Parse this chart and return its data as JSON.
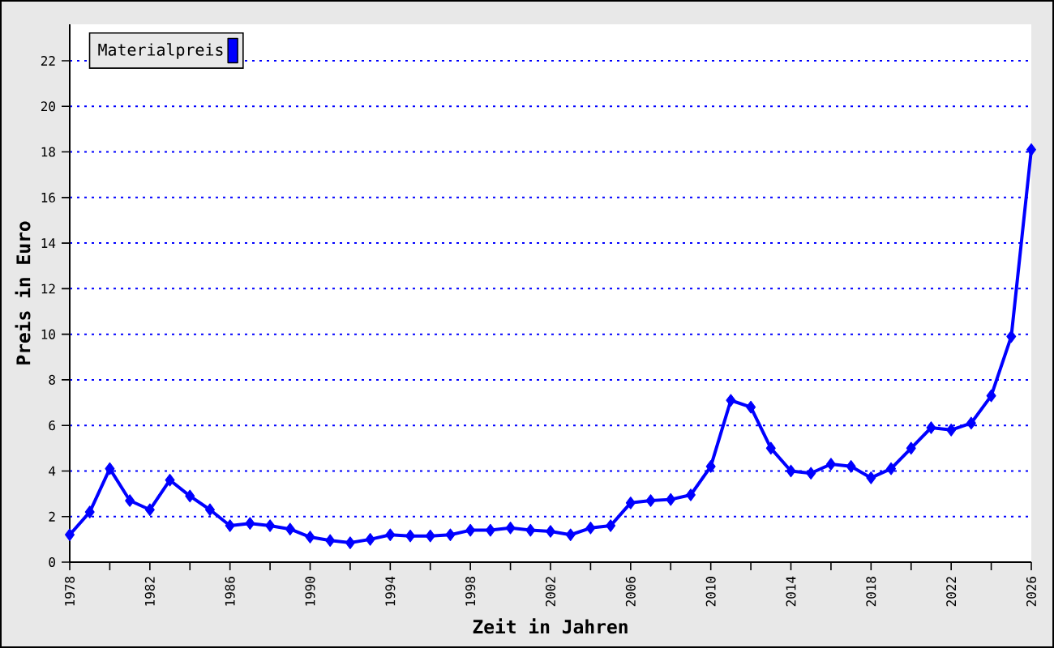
{
  "chart_data": {
    "type": "line",
    "xlabel": "Zeit in Jahren",
    "ylabel": "Preis in Euro",
    "x": [
      1978,
      1979,
      1980,
      1981,
      1982,
      1983,
      1984,
      1985,
      1986,
      1987,
      1988,
      1989,
      1990,
      1991,
      1992,
      1993,
      1994,
      1995,
      1996,
      1997,
      1998,
      1999,
      2000,
      2001,
      2002,
      2003,
      2004,
      2005,
      2006,
      2007,
      2008,
      2009,
      2010,
      2011,
      2012,
      2013,
      2014,
      2015,
      2016,
      2017,
      2018,
      2019,
      2020,
      2021,
      2022,
      2023,
      2024,
      2025,
      2026
    ],
    "series": [
      {
        "name": "Materialpreis",
        "color": "#0000ff",
        "values": [
          1.2,
          2.2,
          4.1,
          2.7,
          2.3,
          3.6,
          2.9,
          2.3,
          1.6,
          1.7,
          1.6,
          1.45,
          1.1,
          0.95,
          0.85,
          1.0,
          1.2,
          1.15,
          1.15,
          1.2,
          1.4,
          1.4,
          1.5,
          1.4,
          1.35,
          1.2,
          1.5,
          1.6,
          2.6,
          2.7,
          2.75,
          2.95,
          4.2,
          7.1,
          6.8,
          5.0,
          4.0,
          3.9,
          4.3,
          4.2,
          3.7,
          4.1,
          5.0,
          5.9,
          5.8,
          6.1,
          7.3,
          9.9,
          18.1
        ]
      }
    ],
    "xlim": [
      1978,
      2026
    ],
    "ylim": [
      0,
      23.6
    ],
    "xticks": [
      1978,
      {
        "value": 1980,
        "label": null
      },
      1982,
      {
        "value": 1984,
        "label": null
      },
      1986,
      {
        "value": 1988,
        "label": null
      },
      1990,
      {
        "value": 1992,
        "label": null
      },
      1994,
      {
        "value": 1996,
        "label": null
      },
      1998,
      {
        "value": 2000,
        "label": null
      },
      2002,
      {
        "value": 2004,
        "label": null
      },
      2006,
      {
        "value": 2008,
        "label": null
      },
      2010,
      {
        "value": 2012,
        "label": null
      },
      2014,
      {
        "value": 2016,
        "label": null
      },
      2018,
      {
        "value": 2020,
        "label": null
      },
      2022,
      {
        "value": 2024,
        "label": null
      },
      2026
    ],
    "yticks": [
      0,
      2,
      4,
      6,
      8,
      10,
      12,
      14,
      16,
      18,
      20,
      22
    ],
    "grid": "y",
    "legend": "top left",
    "marker": "diamond",
    "line_style": "solid"
  }
}
